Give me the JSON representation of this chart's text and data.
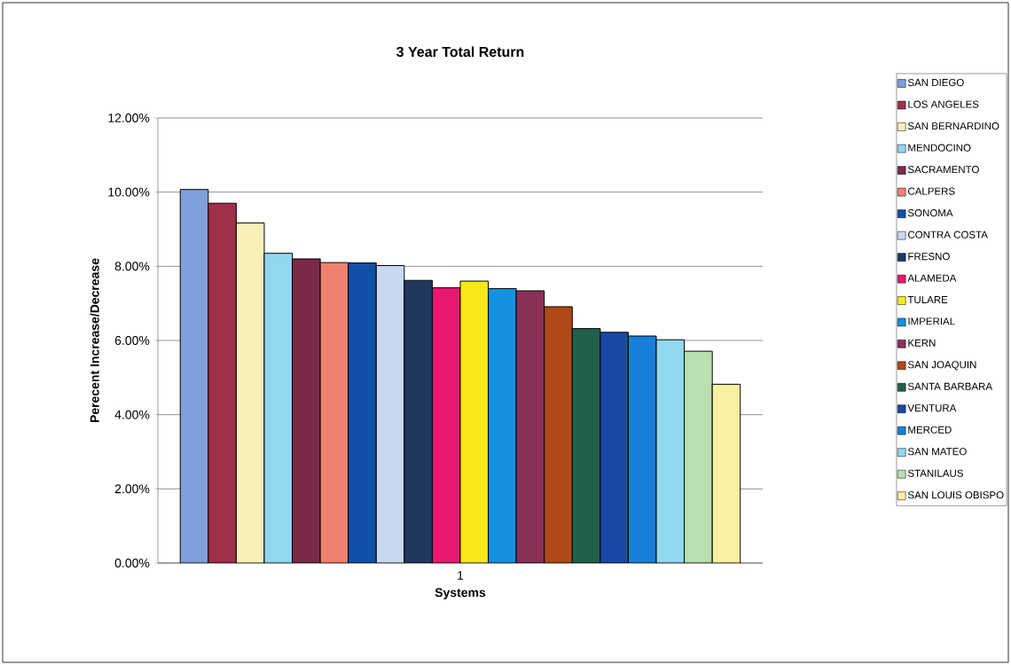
{
  "chart_data": {
    "type": "bar",
    "title": "3 Year Total Return",
    "xlabel": "Systems",
    "ylabel": "Perecent Increase/Decrease",
    "categories": [
      "1"
    ],
    "series": [
      {
        "name": "SAN DIEGO",
        "color": "#7f9fdc",
        "values": [
          10.07
        ]
      },
      {
        "name": "LOS ANGELES",
        "color": "#a0304a",
        "values": [
          9.7
        ]
      },
      {
        "name": "SAN BERNARDINO",
        "color": "#f8f0b8",
        "values": [
          9.17
        ]
      },
      {
        "name": "MENDOCINO",
        "color": "#8fd8f0",
        "values": [
          8.35
        ]
      },
      {
        "name": "SACRAMENTO",
        "color": "#7a2a48",
        "values": [
          8.2
        ]
      },
      {
        "name": "CALPERS",
        "color": "#f08070",
        "values": [
          8.1
        ]
      },
      {
        "name": "SONOMA",
        "color": "#1050a8",
        "values": [
          8.09
        ]
      },
      {
        "name": "CONTRA COSTA",
        "color": "#c8d8f0",
        "values": [
          8.02
        ]
      },
      {
        "name": "FRESNO",
        "color": "#203860",
        "values": [
          7.62
        ]
      },
      {
        "name": "ALAMEDA",
        "color": "#e81870",
        "values": [
          7.42
        ]
      },
      {
        "name": "TULARE",
        "color": "#f8e818",
        "values": [
          7.6
        ]
      },
      {
        "name": "IMPERIAL",
        "color": "#1890e0",
        "values": [
          7.4
        ]
      },
      {
        "name": "KERN",
        "color": "#883058",
        "values": [
          7.34
        ]
      },
      {
        "name": "SAN JOAQUIN",
        "color": "#b04818",
        "values": [
          6.91
        ]
      },
      {
        "name": "SANTA BARBARA",
        "color": "#206048",
        "values": [
          6.32
        ]
      },
      {
        "name": "VENTURA",
        "color": "#1848a8",
        "values": [
          6.22
        ]
      },
      {
        "name": "MERCED",
        "color": "#1880d8",
        "values": [
          6.12
        ]
      },
      {
        "name": "SAN MATEO",
        "color": "#90d8f0",
        "values": [
          6.02
        ]
      },
      {
        "name": "STANILAUS",
        "color": "#b8e0b0",
        "values": [
          5.71
        ]
      },
      {
        "name": "SAN LOUIS OBISPO",
        "color": "#f8f0a0",
        "values": [
          4.82
        ]
      }
    ],
    "ylim": [
      0,
      12
    ],
    "yticks": [
      {
        "value": 0,
        "label": "0.00%"
      },
      {
        "value": 2,
        "label": "2.00%"
      },
      {
        "value": 4,
        "label": "4.00%"
      },
      {
        "value": 6,
        "label": "6.00%"
      },
      {
        "value": 8,
        "label": "8.00%"
      },
      {
        "value": 10,
        "label": "10.00%"
      },
      {
        "value": 12,
        "label": "12.00%"
      }
    ],
    "grid": "y",
    "legend": "right"
  }
}
